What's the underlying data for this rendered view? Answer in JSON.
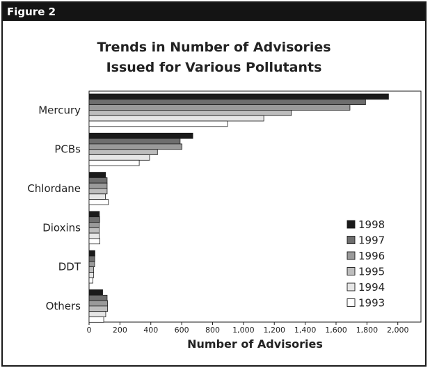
{
  "figure": {
    "label": "Figure 2"
  },
  "chart_data": {
    "type": "bar",
    "orientation": "horizontal",
    "title": "Trends in Number of Advisories Issued for Various Pollutants",
    "title_lines": [
      "Trends in Number of Advisories",
      "Issued for Various Pollutants"
    ],
    "xlabel": "Number of Advisories",
    "ylabel": "",
    "xlim": [
      0,
      2150
    ],
    "xticks": [
      0,
      200,
      400,
      600,
      800,
      1000,
      1200,
      1400,
      1600,
      1800,
      2000
    ],
    "xtick_labels": [
      "0",
      "200",
      "400",
      "600",
      "800",
      "1,000",
      "1,200",
      "1,400",
      "1,600",
      "1,800",
      "2,000"
    ],
    "categories": [
      "Mercury",
      "PCBs",
      "Chlordane",
      "Dioxins",
      "DDT",
      "Others"
    ],
    "series": [
      {
        "name": "1998",
        "color": "#1a1a1a",
        "values": [
          1940,
          672,
          107,
          67,
          38,
          88
        ]
      },
      {
        "name": "1997",
        "color": "#6e6e6e",
        "values": [
          1791,
          590,
          117,
          69,
          37,
          117
        ]
      },
      {
        "name": "1996",
        "color": "#9a9a9a",
        "values": [
          1690,
          602,
          117,
          66,
          36,
          120
        ]
      },
      {
        "name": "1995",
        "color": "#bdbdbd",
        "values": [
          1310,
          443,
          117,
          66,
          30,
          120
        ]
      },
      {
        "name": "1994",
        "color": "#e6e6e6",
        "values": [
          1132,
          392,
          106,
          66,
          30,
          108
        ]
      },
      {
        "name": "1993",
        "color": "#ffffff",
        "values": [
          897,
          325,
          125,
          70,
          25,
          95
        ]
      }
    ],
    "legend_position": "bottom-right",
    "grid": false
  }
}
